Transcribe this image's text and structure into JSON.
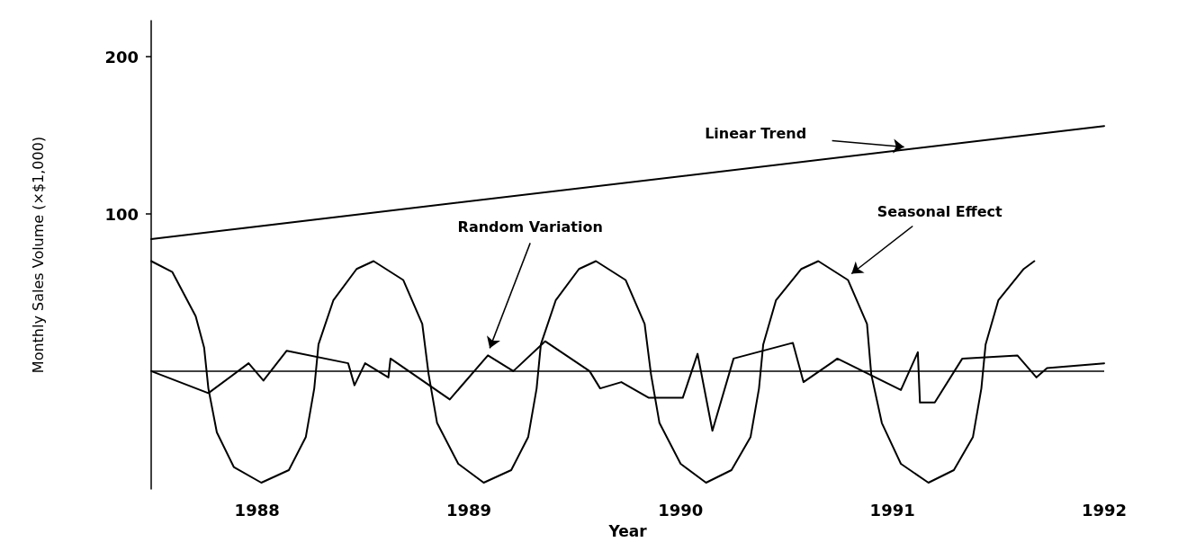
{
  "chart_data": {
    "type": "line",
    "xlabel": "Year",
    "ylabel": "Monthly Sales Volume (×$1,000)",
    "xlim": [
      1987.5,
      1992
    ],
    "xticks": [
      1988,
      1989,
      1990,
      1991,
      1992
    ],
    "ylim": [
      -75,
      223
    ],
    "yticks": [
      100,
      200
    ],
    "grid": false,
    "legend": false,
    "marker": "none",
    "line_style": "solid",
    "ref_lines": [
      {
        "axis": "y",
        "value": 0,
        "color": "#000000"
      }
    ],
    "series": [
      {
        "name": "Linear Trend",
        "color": "#000000",
        "x": [
          1987.5,
          1992
        ],
        "values": [
          84,
          156
        ]
      },
      {
        "name": "Seasonal Effect",
        "color": "#000000",
        "x": [
          1987.5,
          1987.6,
          1987.71,
          1987.75,
          1987.77,
          1987.81,
          1987.89,
          1988.02,
          1988.15,
          1988.23,
          1988.27,
          1988.29,
          1988.36,
          1988.47,
          1988.55,
          1988.69,
          1988.78,
          1988.81,
          1988.85,
          1988.95,
          1989.07,
          1989.2,
          1989.28,
          1989.32,
          1989.34,
          1989.41,
          1989.52,
          1989.6,
          1989.74,
          1989.83,
          1989.86,
          1989.9,
          1990.0,
          1990.12,
          1990.24,
          1990.33,
          1990.37,
          1990.39,
          1990.45,
          1990.57,
          1990.65,
          1990.79,
          1990.88,
          1990.9,
          1990.95,
          1991.04,
          1991.17,
          1991.29,
          1991.38,
          1991.42,
          1991.44,
          1991.5,
          1991.62,
          1991.67
        ],
        "values": [
          70,
          63,
          35,
          15,
          -11,
          -39,
          -61,
          -71,
          -63,
          -42,
          -11,
          17,
          45,
          65,
          70,
          58,
          30,
          -2,
          -33,
          -59,
          -71,
          -63,
          -42,
          -11,
          17,
          45,
          65,
          70,
          58,
          30,
          -2,
          -33,
          -59,
          -71,
          -63,
          -42,
          -11,
          17,
          45,
          65,
          70,
          58,
          30,
          -2,
          -33,
          -59,
          -71,
          -63,
          -42,
          -11,
          17,
          45,
          65,
          70
        ]
      },
      {
        "name": "Random Variation",
        "color": "#000000",
        "x": [
          1987.5,
          1987.77,
          1987.96,
          1988.03,
          1988.14,
          1988.43,
          1988.46,
          1988.51,
          1988.62,
          1988.63,
          1988.91,
          1989.09,
          1989.21,
          1989.36,
          1989.57,
          1989.62,
          1989.72,
          1989.85,
          1990.01,
          1990.08,
          1990.15,
          1990.25,
          1990.53,
          1990.58,
          1990.72,
          1990.74,
          1991.04,
          1991.12,
          1991.13,
          1991.2,
          1991.33,
          1991.59,
          1991.68,
          1991.73,
          1992
        ],
        "values": [
          0,
          -14,
          5,
          -6,
          13,
          5,
          -9,
          5,
          -4,
          8,
          -18,
          10,
          0,
          19,
          0,
          -11,
          -7,
          -17,
          -17,
          11,
          -38,
          8,
          18,
          -7,
          6,
          8,
          -12,
          12,
          -20,
          -20,
          8,
          10,
          -4,
          2,
          5
        ]
      }
    ]
  }
}
